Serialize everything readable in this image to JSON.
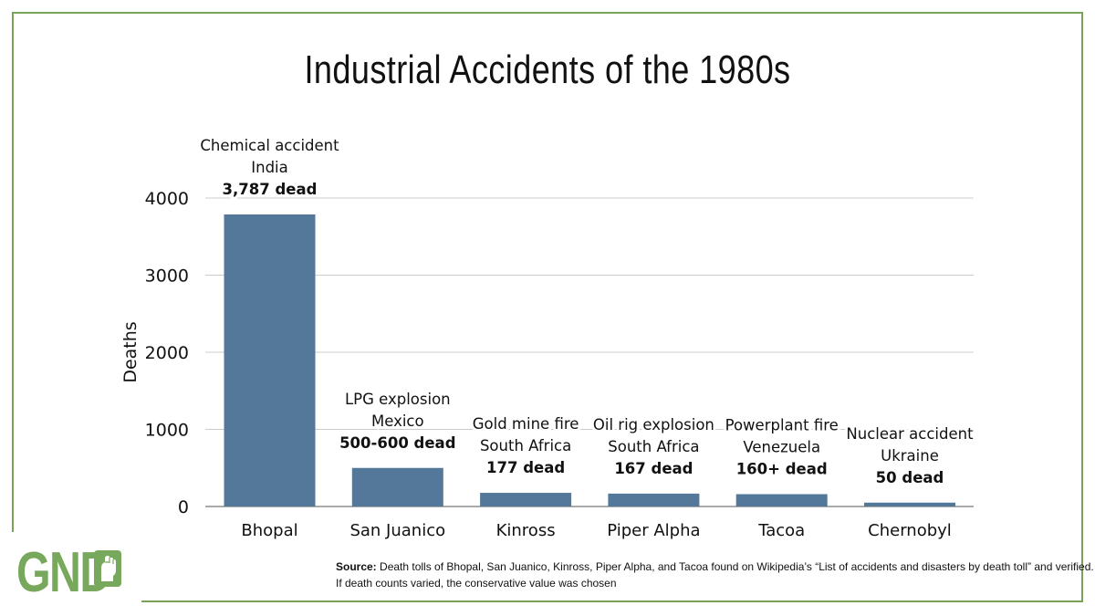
{
  "title": "Industrial Accidents of the 1980s",
  "logo": {
    "text": "GND",
    "icon": "raised-fist-icon",
    "color": "#78a85c"
  },
  "source": {
    "label": "Source:",
    "line1": "Death tolls of Bhopal, San Juanico, Kinross, Piper Alpha, and Tacoa found on Wikipedia’s “List of accidents and disasters by death toll” and verified.",
    "line2": "If death counts varied, the conservative value was chosen"
  },
  "colors": {
    "bar": "#53789a",
    "frame": "#7aa35a",
    "grid": "#cccccc"
  },
  "chart_data": {
    "type": "bar",
    "title": "Industrial Accidents of the 1980s",
    "xlabel": "",
    "ylabel": "Deaths",
    "ylim": [
      0,
      4000
    ],
    "yticks": [
      0,
      1000,
      2000,
      3000,
      4000
    ],
    "grid": true,
    "categories": [
      "Bhopal",
      "San Juanico",
      "Kinross",
      "Piper Alpha",
      "Tacoa",
      "Chernobyl"
    ],
    "values": [
      3787,
      500,
      177,
      167,
      160,
      50
    ],
    "annotations": [
      {
        "line1": "Chemical accident",
        "line2": "India",
        "line3": "3,787 dead"
      },
      {
        "line1": "LPG explosion",
        "line2": "Mexico",
        "line3": "500-600 dead"
      },
      {
        "line1": "Gold mine fire",
        "line2": "South Africa",
        "line3": "177 dead"
      },
      {
        "line1": "Oil rig explosion",
        "line2": "South Africa",
        "line3": "167 dead"
      },
      {
        "line1": "Powerplant fire",
        "line2": "Venezuela",
        "line3": "160+ dead"
      },
      {
        "line1": "Nuclear accident",
        "line2": "Ukraine",
        "line3": "50 dead"
      }
    ]
  }
}
